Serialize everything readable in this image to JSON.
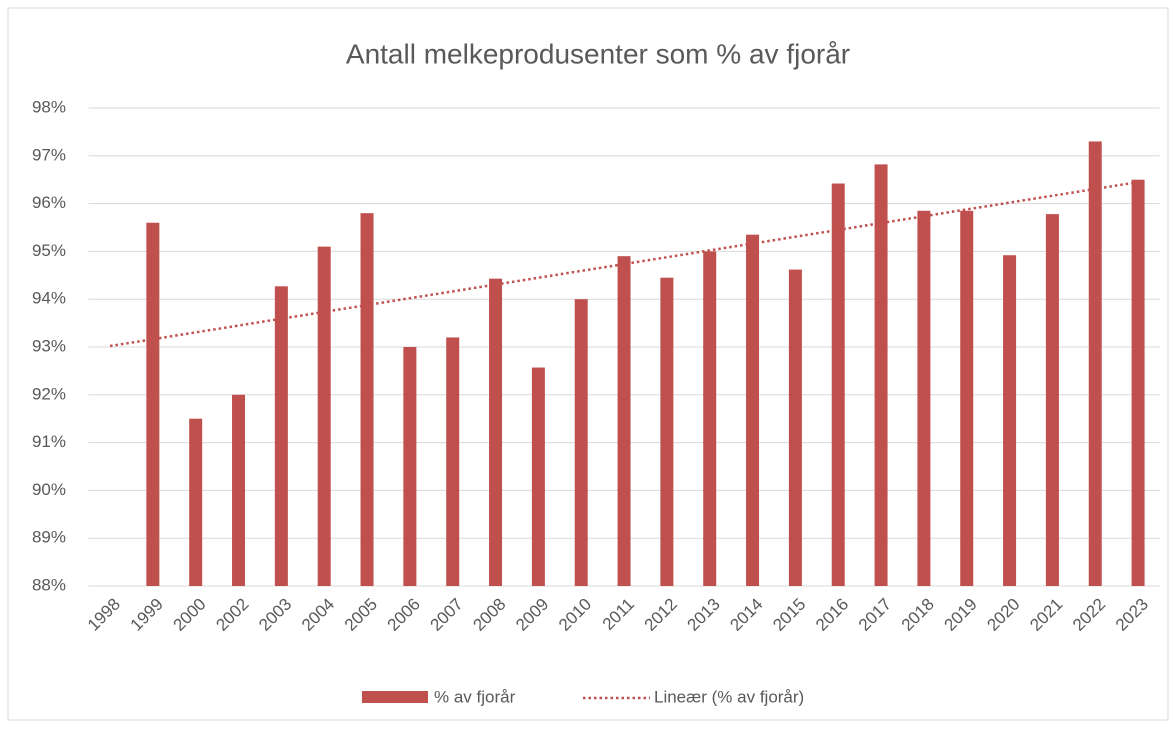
{
  "chart_data": {
    "type": "bar",
    "title": "Antall melkeprodusenter som % av fjorår",
    "categories": [
      "1998",
      "1999",
      "2000",
      "2002",
      "2003",
      "2004",
      "2005",
      "2006",
      "2007",
      "2008",
      "2009",
      "2010",
      "2011",
      "2012",
      "2013",
      "2014",
      "2015",
      "2016",
      "2017",
      "2018",
      "2019",
      "2020",
      "2021",
      "2022",
      "2023"
    ],
    "series": [
      {
        "name": "% av fjorår",
        "color": "#c0504d",
        "values": [
          null,
          95.6,
          91.5,
          92.0,
          94.27,
          95.1,
          95.8,
          93.0,
          93.2,
          94.43,
          92.57,
          94.0,
          94.9,
          94.45,
          95.0,
          95.35,
          94.62,
          96.42,
          96.82,
          95.85,
          95.85,
          94.92,
          95.78,
          97.3,
          96.5
        ]
      }
    ],
    "trend": {
      "name": "Lineær (% av fjorår)",
      "color": "#c0504d",
      "start": 93.02,
      "end": 96.45
    },
    "ylim": [
      88,
      98
    ],
    "yticks": [
      {
        "value": 88,
        "label": "88%"
      },
      {
        "value": 89,
        "label": "89%"
      },
      {
        "value": 90,
        "label": "90%"
      },
      {
        "value": 91,
        "label": "91%"
      },
      {
        "value": 92,
        "label": "92%"
      },
      {
        "value": 93,
        "label": "93%"
      },
      {
        "value": 94,
        "label": "94%"
      },
      {
        "value": 95,
        "label": "95%"
      },
      {
        "value": 96,
        "label": "96%"
      },
      {
        "value": 97,
        "label": "97%"
      },
      {
        "value": 98,
        "label": "98%"
      }
    ],
    "grid": true,
    "legend": "bottom"
  }
}
